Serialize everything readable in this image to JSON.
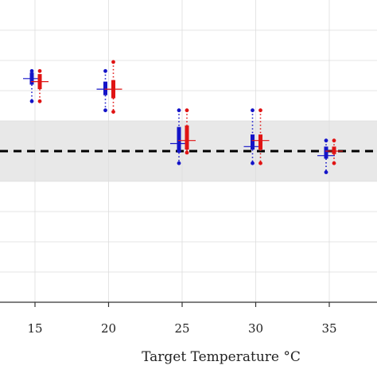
{
  "chart_data": {
    "type": "box",
    "title": "",
    "xlabel": "Target Temperature °C",
    "ylabel": "",
    "categories": [
      "15",
      "20",
      "25",
      "30",
      "35"
    ],
    "ylim": [
      0,
      10
    ],
    "reference_line": 5,
    "tolerance_band": [
      4,
      6
    ],
    "grid": true,
    "series": [
      {
        "color": "#1414c8",
        "boxes": [
          {
            "min": 6.65,
            "q1": 7.2,
            "median": 7.4,
            "q3": 7.6,
            "max": 7.65
          },
          {
            "min": 6.35,
            "q1": 6.85,
            "median": 7.05,
            "q3": 7.3,
            "max": 7.65
          },
          {
            "min": 4.6,
            "q1": 4.95,
            "median": 5.25,
            "q3": 5.8,
            "max": 6.35
          },
          {
            "min": 4.6,
            "q1": 5.05,
            "median": 5.15,
            "q3": 5.55,
            "max": 6.35
          },
          {
            "min": 4.3,
            "q1": 4.75,
            "median": 4.85,
            "q3": 5.15,
            "max": 5.35
          }
        ]
      },
      {
        "color": "#e01414",
        "boxes": [
          {
            "min": 6.65,
            "q1": 7.05,
            "median": 7.3,
            "q3": 7.55,
            "max": 7.65
          },
          {
            "min": 6.3,
            "q1": 6.75,
            "median": 7.05,
            "q3": 7.35,
            "max": 7.95
          },
          {
            "min": 4.95,
            "q1": 5.05,
            "median": 5.35,
            "q3": 5.85,
            "max": 6.35
          },
          {
            "min": 4.6,
            "q1": 5.05,
            "median": 5.35,
            "q3": 5.55,
            "max": 6.35
          },
          {
            "min": 4.6,
            "q1": 4.9,
            "median": 5.0,
            "q3": 5.15,
            "max": 5.35
          }
        ]
      }
    ]
  }
}
